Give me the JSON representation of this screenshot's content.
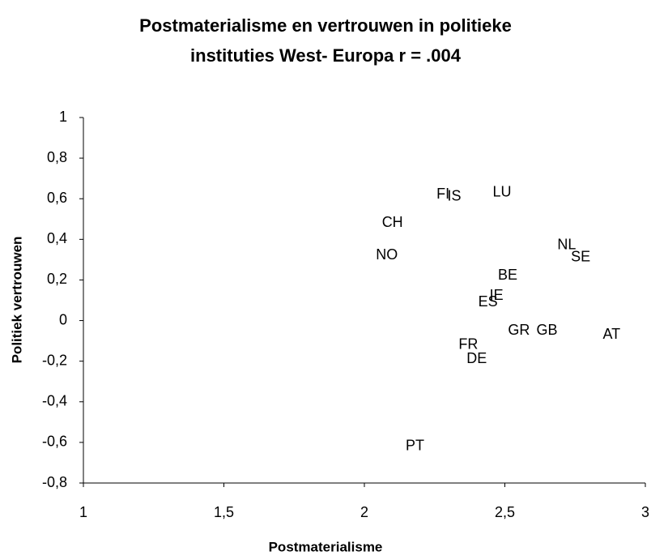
{
  "chart_data": {
    "type": "scatter",
    "title": [
      "Postmaterialisme en vertrouwen in politieke",
      "instituties West- Europa r = .004"
    ],
    "x_label": "Postmaterialisme",
    "y_label": "Politiek vertrouwen",
    "labels": [
      "FI",
      "IS",
      "LU",
      "CH",
      "NO",
      "NL",
      "SE",
      "BE",
      "IE",
      "ES",
      "GR",
      "GB",
      "AT",
      "FR",
      "DE",
      "PT"
    ],
    "x": [
      2.28,
      2.32,
      2.49,
      2.1,
      2.08,
      2.72,
      2.77,
      2.51,
      2.47,
      2.44,
      2.55,
      2.65,
      2.88,
      2.37,
      2.4,
      2.18
    ],
    "values": [
      0.62,
      0.61,
      0.63,
      0.48,
      0.32,
      0.37,
      0.31,
      0.22,
      0.12,
      0.09,
      -0.05,
      -0.05,
      -0.07,
      -0.12,
      -0.19,
      -0.62
    ],
    "xlim": [
      1,
      3
    ],
    "xticks": [
      1,
      {
        "value": 1.5,
        "label": "1,5"
      },
      2,
      {
        "value": 2.5,
        "label": "2,5"
      },
      3
    ],
    "ylim": [
      -0.8,
      1
    ],
    "yticks": [
      {
        "value": -0.8,
        "label": "-0,8"
      },
      {
        "value": -0.6,
        "label": "-0,6"
      },
      {
        "value": -0.4,
        "label": "-0,4"
      },
      {
        "value": -0.2,
        "label": "-0,2"
      },
      0,
      {
        "value": 0.2,
        "label": "0,2"
      },
      {
        "value": 0.4,
        "label": "0,4"
      },
      {
        "value": 0.6,
        "label": "0,6"
      },
      {
        "value": 0.8,
        "label": "0,8"
      },
      1
    ],
    "grid": false
  }
}
